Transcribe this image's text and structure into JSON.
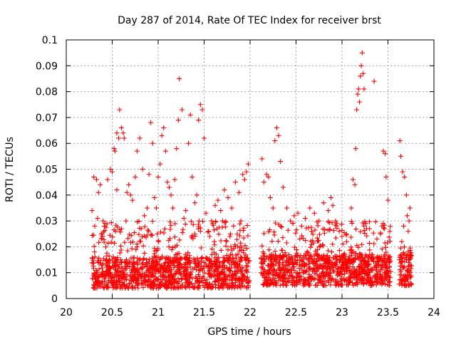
{
  "chart_data": {
    "type": "scatter",
    "title": "Day 287 of 2014, Rate Of TEC Index for receiver brst",
    "xlabel": "GPS time / hours",
    "ylabel": "ROTI / TECUs",
    "xlim": [
      20,
      24
    ],
    "ylim": [
      0,
      0.1
    ],
    "x_ticks": [
      "20",
      "20.5",
      "21",
      "21.5",
      "22",
      "22.5",
      "23",
      "23.5",
      "24"
    ],
    "y_ticks": [
      "0",
      "0.01",
      "0.02",
      "0.03",
      "0.04",
      "0.05",
      "0.06",
      "0.07",
      "0.08",
      "0.09",
      "0.1"
    ],
    "grid": true,
    "marker": "+",
    "color": "#ff0000",
    "series": [
      {
        "values": [
          [
            20.28,
            0.034
          ],
          [
            20.3,
            0.047
          ],
          [
            20.33,
            0.046
          ],
          [
            20.35,
            0.041
          ],
          [
            20.37,
            0.044
          ],
          [
            20.31,
            0.028
          ],
          [
            20.34,
            0.031
          ],
          [
            20.38,
            0.025
          ],
          [
            20.4,
            0.03
          ],
          [
            20.42,
            0.029
          ],
          [
            20.45,
            0.046
          ],
          [
            20.48,
            0.05
          ],
          [
            20.5,
            0.049
          ],
          [
            20.52,
            0.058
          ],
          [
            20.53,
            0.057
          ],
          [
            20.55,
            0.064
          ],
          [
            20.57,
            0.062
          ],
          [
            20.58,
            0.073
          ],
          [
            20.6,
            0.066
          ],
          [
            20.62,
            0.064
          ],
          [
            20.63,
            0.062
          ],
          [
            20.55,
            0.042
          ],
          [
            20.6,
            0.027
          ],
          [
            20.65,
            0.03
          ],
          [
            20.66,
            0.041
          ],
          [
            20.68,
            0.044
          ],
          [
            20.7,
            0.04
          ],
          [
            20.72,
            0.038
          ],
          [
            20.75,
            0.047
          ],
          [
            20.77,
            0.057
          ],
          [
            20.8,
            0.062
          ],
          [
            20.83,
            0.05
          ],
          [
            20.85,
            0.032
          ],
          [
            20.88,
            0.035
          ],
          [
            20.9,
            0.048
          ],
          [
            20.92,
            0.068
          ],
          [
            20.94,
            0.06
          ],
          [
            20.96,
            0.039
          ],
          [
            20.98,
            0.035
          ],
          [
            21.0,
            0.047
          ],
          [
            21.02,
            0.052
          ],
          [
            21.04,
            0.063
          ],
          [
            21.06,
            0.066
          ],
          [
            21.08,
            0.057
          ],
          [
            21.1,
            0.045
          ],
          [
            21.12,
            0.043
          ],
          [
            21.14,
            0.04
          ],
          [
            21.16,
            0.035
          ],
          [
            21.18,
            0.046
          ],
          [
            21.2,
            0.058
          ],
          [
            21.22,
            0.069
          ],
          [
            21.23,
            0.085
          ],
          [
            21.26,
            0.073
          ],
          [
            21.28,
            0.031
          ],
          [
            21.3,
            0.034
          ],
          [
            21.33,
            0.06
          ],
          [
            21.35,
            0.071
          ],
          [
            21.37,
            0.047
          ],
          [
            21.4,
            0.037
          ],
          [
            21.42,
            0.04
          ],
          [
            21.44,
            0.069
          ],
          [
            21.46,
            0.075
          ],
          [
            21.48,
            0.073
          ],
          [
            21.5,
            0.062
          ],
          [
            21.52,
            0.033
          ],
          [
            21.55,
            0.026
          ],
          [
            21.58,
            0.03
          ],
          [
            21.62,
            0.036
          ],
          [
            21.65,
            0.038
          ],
          [
            21.68,
            0.034
          ],
          [
            21.72,
            0.042
          ],
          [
            21.76,
            0.039
          ],
          [
            21.8,
            0.035
          ],
          [
            21.84,
            0.045
          ],
          [
            21.88,
            0.041
          ],
          [
            21.92,
            0.048
          ],
          [
            21.94,
            0.046
          ],
          [
            21.96,
            0.049
          ],
          [
            21.98,
            0.052
          ],
          [
            21.9,
            0.03
          ],
          [
            21.86,
            0.025
          ],
          [
            21.82,
            0.028
          ],
          [
            21.78,
            0.024
          ],
          [
            21.7,
            0.03
          ],
          [
            21.64,
            0.027
          ],
          [
            21.56,
            0.024
          ],
          [
            21.46,
            0.026
          ],
          [
            21.4,
            0.025
          ],
          [
            22.13,
            0.054
          ],
          [
            22.15,
            0.045
          ],
          [
            22.18,
            0.048
          ],
          [
            22.2,
            0.047
          ],
          [
            22.22,
            0.039
          ],
          [
            22.25,
            0.035
          ],
          [
            22.27,
            0.061
          ],
          [
            22.29,
            0.066
          ],
          [
            22.31,
            0.063
          ],
          [
            22.33,
            0.053
          ],
          [
            22.36,
            0.043
          ],
          [
            22.4,
            0.035
          ],
          [
            22.44,
            0.03
          ],
          [
            22.48,
            0.032
          ],
          [
            22.52,
            0.033
          ],
          [
            22.56,
            0.028
          ],
          [
            22.6,
            0.031
          ],
          [
            22.65,
            0.035
          ],
          [
            22.7,
            0.033
          ],
          [
            22.75,
            0.03
          ],
          [
            22.8,
            0.037
          ],
          [
            22.85,
            0.034
          ],
          [
            22.88,
            0.039
          ],
          [
            22.9,
            0.036
          ],
          [
            22.93,
            0.03
          ],
          [
            22.97,
            0.026
          ],
          [
            23.0,
            0.024
          ],
          [
            23.05,
            0.022
          ],
          [
            23.1,
            0.035
          ],
          [
            23.12,
            0.046
          ],
          [
            23.14,
            0.044
          ],
          [
            23.15,
            0.058
          ],
          [
            23.16,
            0.073
          ],
          [
            23.17,
            0.079
          ],
          [
            23.18,
            0.081
          ],
          [
            23.19,
            0.076
          ],
          [
            23.2,
            0.086
          ],
          [
            23.21,
            0.09
          ],
          [
            23.22,
            0.095
          ],
          [
            23.23,
            0.087
          ],
          [
            23.24,
            0.081
          ],
          [
            23.26,
            0.029
          ],
          [
            23.3,
            0.027
          ],
          [
            23.35,
            0.084
          ],
          [
            23.38,
            0.023
          ],
          [
            23.42,
            0.025
          ],
          [
            23.45,
            0.057
          ],
          [
            23.47,
            0.056
          ],
          [
            23.48,
            0.047
          ],
          [
            23.5,
            0.038
          ],
          [
            23.52,
            0.026
          ],
          [
            23.46,
            0.027
          ],
          [
            23.63,
            0.061
          ],
          [
            23.64,
            0.055
          ],
          [
            23.66,
            0.049
          ],
          [
            23.68,
            0.047
          ],
          [
            23.7,
            0.04
          ],
          [
            23.71,
            0.032
          ],
          [
            23.73,
            0.03
          ],
          [
            23.74,
            0.035
          ],
          [
            23.72,
            0.026
          ],
          [
            23.67,
            0.028
          ],
          [
            23.65,
            0.022
          ]
        ]
      }
    ],
    "dense_bands": [
      {
        "x_range": [
          20.28,
          21.99
        ],
        "y_range": [
          0.004,
          0.03
        ]
      },
      {
        "x_range": [
          22.12,
          23.53
        ],
        "y_range": [
          0.005,
          0.03
        ]
      },
      {
        "x_range": [
          23.62,
          23.76
        ],
        "y_range": [
          0.005,
          0.02
        ]
      }
    ]
  }
}
